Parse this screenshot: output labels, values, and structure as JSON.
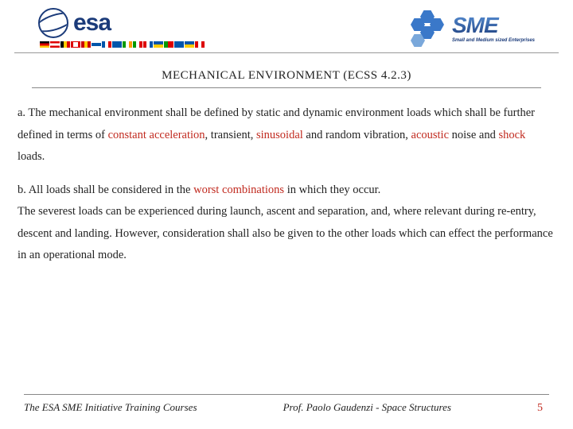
{
  "header": {
    "esa_text": "esa",
    "sme_text": "SME",
    "sme_tagline": "Small and Medium sized Enterprises",
    "flag_count": 16
  },
  "title": "MECHANICAL ENVIRONMENT (ECSS 4.2.3)",
  "paragraphs": {
    "a": {
      "pre1": "a. The mechanical environment shall be defined by static and dynamic environment loads which shall be further defined in terms of ",
      "r1": "constant acceleration",
      "mid1": ", transient, ",
      "r2": "sinusoidal",
      "mid2": " and random vibration, ",
      "r3": "acoustic",
      "mid3": " noise and ",
      "r4": "shock",
      "post": " loads."
    },
    "b": {
      "pre1": "b. All loads shall be considered in the ",
      "r1": "worst combinations",
      "post1": " in which they occur.",
      "line2": "The severest loads can be experienced during launch, ascent and separation, and, where relevant during re-entry, descent and landing. However, consideration shall also be given to the other loads which can effect the performance in an operational mode."
    }
  },
  "footer": {
    "left": "The ESA SME Initiative Training Courses",
    "center": "Prof. Paolo Gaudenzi - Space Structures",
    "page": "5"
  },
  "colors": {
    "red": "#c12a1f",
    "esa_blue": "#1b3b7a",
    "rule": "#888888"
  }
}
